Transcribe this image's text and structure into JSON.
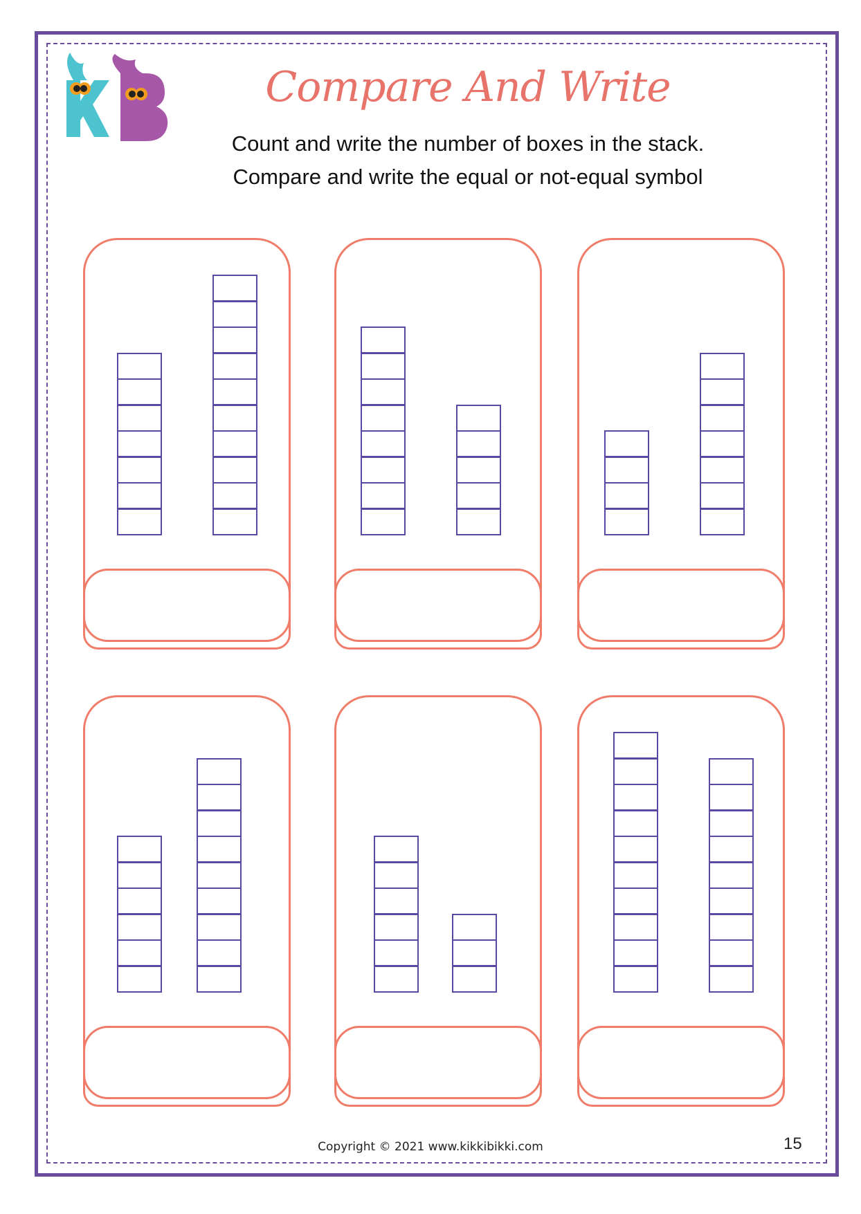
{
  "header": {
    "logo_text": "KB",
    "title": "Compare And Write",
    "instructions": [
      "Count and write the number of boxes in the stack.",
      "Compare and write the equal or not-equal symbol"
    ]
  },
  "exercises": [
    {
      "left_boxes": 7,
      "right_boxes": 10,
      "answer": ""
    },
    {
      "left_boxes": 8,
      "right_boxes": 5,
      "answer": ""
    },
    {
      "left_boxes": 4,
      "right_boxes": 7,
      "answer": ""
    },
    {
      "left_boxes": 6,
      "right_boxes": 9,
      "answer": ""
    },
    {
      "left_boxes": 6,
      "right_boxes": 3,
      "answer": ""
    },
    {
      "left_boxes": 10,
      "right_boxes": 9,
      "answer": ""
    }
  ],
  "footer": {
    "copyright": "Copyright © 2021 www.kikkibikki.com",
    "page_number": "15"
  },
  "colors": {
    "border": "#6a4c9c",
    "card_outline": "#ef7d6a",
    "title": "#e8736a",
    "box_outline": "#5a48a2",
    "logo_k": "#4cc3cf",
    "logo_b": "#a757a8"
  }
}
